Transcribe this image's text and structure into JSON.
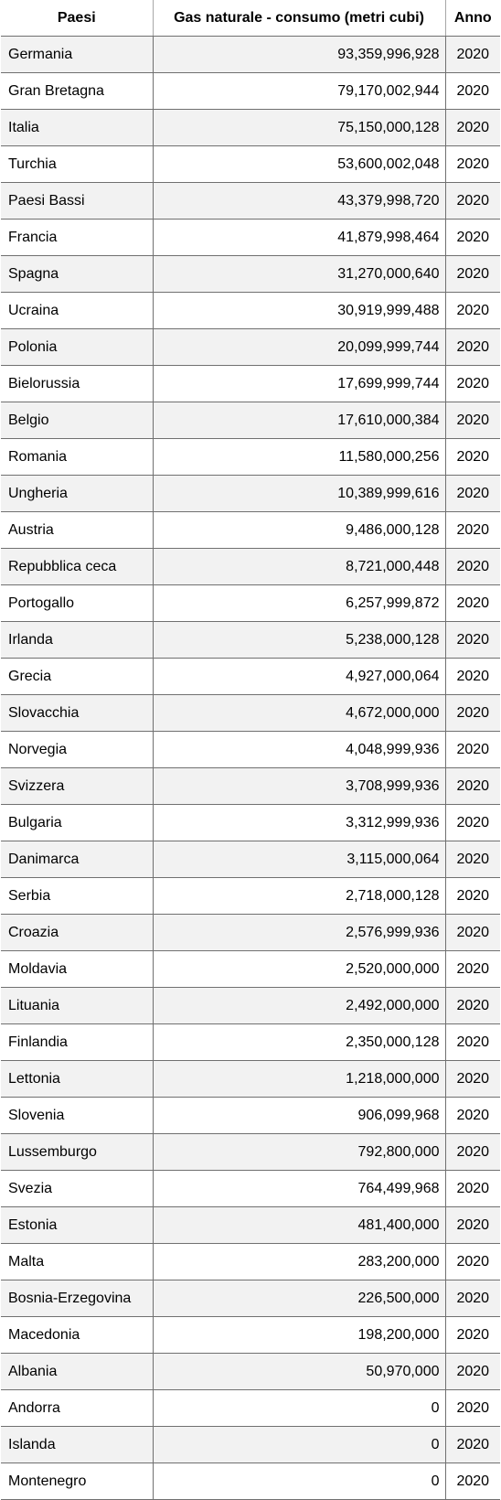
{
  "table": {
    "headers": {
      "country": "Paesi",
      "value": "Gas naturale - consumo (metri cubi)",
      "year": "Anno"
    },
    "rows": [
      {
        "country": "Germania",
        "value": "93,359,996,928",
        "year": "2020"
      },
      {
        "country": "Gran Bretagna",
        "value": "79,170,002,944",
        "year": "2020"
      },
      {
        "country": "Italia",
        "value": "75,150,000,128",
        "year": "2020"
      },
      {
        "country": "Turchia",
        "value": "53,600,002,048",
        "year": "2020"
      },
      {
        "country": "Paesi Bassi",
        "value": "43,379,998,720",
        "year": "2020"
      },
      {
        "country": "Francia",
        "value": "41,879,998,464",
        "year": "2020"
      },
      {
        "country": "Spagna",
        "value": "31,270,000,640",
        "year": "2020"
      },
      {
        "country": "Ucraina",
        "value": "30,919,999,488",
        "year": "2020"
      },
      {
        "country": "Polonia",
        "value": "20,099,999,744",
        "year": "2020"
      },
      {
        "country": "Bielorussia",
        "value": "17,699,999,744",
        "year": "2020"
      },
      {
        "country": "Belgio",
        "value": "17,610,000,384",
        "year": "2020"
      },
      {
        "country": "Romania",
        "value": "11,580,000,256",
        "year": "2020"
      },
      {
        "country": "Ungheria",
        "value": "10,389,999,616",
        "year": "2020"
      },
      {
        "country": "Austria",
        "value": "9,486,000,128",
        "year": "2020"
      },
      {
        "country": "Repubblica ceca",
        "value": "8,721,000,448",
        "year": "2020"
      },
      {
        "country": "Portogallo",
        "value": "6,257,999,872",
        "year": "2020"
      },
      {
        "country": "Irlanda",
        "value": "5,238,000,128",
        "year": "2020"
      },
      {
        "country": "Grecia",
        "value": "4,927,000,064",
        "year": "2020"
      },
      {
        "country": "Slovacchia",
        "value": "4,672,000,000",
        "year": "2020"
      },
      {
        "country": "Norvegia",
        "value": "4,048,999,936",
        "year": "2020"
      },
      {
        "country": "Svizzera",
        "value": "3,708,999,936",
        "year": "2020"
      },
      {
        "country": "Bulgaria",
        "value": "3,312,999,936",
        "year": "2020"
      },
      {
        "country": "Danimarca",
        "value": "3,115,000,064",
        "year": "2020"
      },
      {
        "country": "Serbia",
        "value": "2,718,000,128",
        "year": "2020"
      },
      {
        "country": "Croazia",
        "value": "2,576,999,936",
        "year": "2020"
      },
      {
        "country": "Moldavia",
        "value": "2,520,000,000",
        "year": "2020"
      },
      {
        "country": "Lituania",
        "value": "2,492,000,000",
        "year": "2020"
      },
      {
        "country": "Finlandia",
        "value": "2,350,000,128",
        "year": "2020"
      },
      {
        "country": "Lettonia",
        "value": "1,218,000,000",
        "year": "2020"
      },
      {
        "country": "Slovenia",
        "value": "906,099,968",
        "year": "2020"
      },
      {
        "country": "Lussemburgo",
        "value": "792,800,000",
        "year": "2020"
      },
      {
        "country": "Svezia",
        "value": "764,499,968",
        "year": "2020"
      },
      {
        "country": "Estonia",
        "value": "481,400,000",
        "year": "2020"
      },
      {
        "country": "Malta",
        "value": "283,200,000",
        "year": "2020"
      },
      {
        "country": "Bosnia-Erzegovina",
        "value": "226,500,000",
        "year": "2020"
      },
      {
        "country": "Macedonia",
        "value": "198,200,000",
        "year": "2020"
      },
      {
        "country": "Albania",
        "value": "50,970,000",
        "year": "2020"
      },
      {
        "country": "Andorra",
        "value": "0",
        "year": "2020"
      },
      {
        "country": "Islanda",
        "value": "0",
        "year": "2020"
      },
      {
        "country": "Montenegro",
        "value": "0",
        "year": "2020"
      }
    ]
  }
}
